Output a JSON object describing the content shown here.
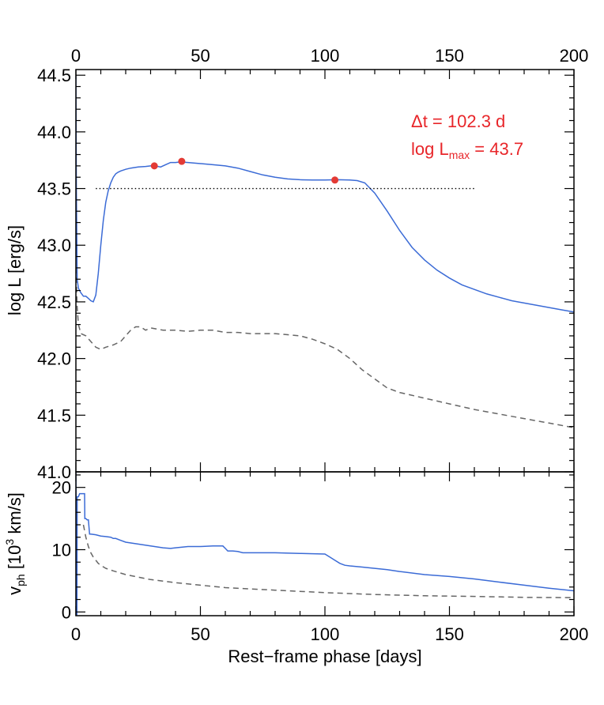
{
  "chart_data": [
    {
      "type": "line",
      "panel": "luminosity",
      "ylabel": "log L [erg/s]",
      "xlim": [
        0,
        200
      ],
      "ylim": [
        41.0,
        44.55
      ],
      "x_ticks": [
        0,
        50,
        100,
        150,
        200
      ],
      "y_ticks": [
        "41.0",
        "41.5",
        "42.0",
        "42.5",
        "43.0",
        "43.5",
        "44.0",
        "44.5"
      ],
      "grid": false,
      "series": [
        {
          "style": "solid",
          "color": "#3b6bd6",
          "x": [
            0,
            0.2,
            0.5,
            1,
            2,
            3,
            4,
            5,
            6,
            7,
            8,
            9,
            10,
            11,
            12,
            13,
            14,
            15,
            16,
            17,
            18,
            20,
            22,
            25,
            28,
            30,
            32,
            34,
            36,
            38,
            40,
            42,
            45,
            50,
            55,
            60,
            65,
            70,
            75,
            80,
            85,
            90,
            95,
            100,
            105,
            110,
            113,
            116,
            120,
            125,
            130,
            135,
            140,
            145,
            150,
            155,
            160,
            165,
            170,
            175,
            180,
            185,
            190,
            195,
            200
          ],
          "y": [
            44.5,
            43.5,
            42.7,
            42.62,
            42.58,
            42.55,
            42.55,
            42.53,
            42.51,
            42.5,
            42.56,
            42.75,
            43.0,
            43.22,
            43.38,
            43.48,
            43.55,
            43.6,
            43.63,
            43.645,
            43.655,
            43.67,
            43.68,
            43.69,
            43.695,
            43.7,
            43.7,
            43.69,
            43.71,
            43.73,
            43.73,
            43.735,
            43.73,
            43.72,
            43.71,
            43.7,
            43.68,
            43.65,
            43.62,
            43.6,
            43.585,
            43.578,
            43.575,
            43.575,
            43.578,
            43.575,
            43.57,
            43.55,
            43.46,
            43.3,
            43.13,
            42.98,
            42.87,
            42.78,
            42.71,
            42.65,
            42.61,
            42.57,
            42.54,
            42.51,
            42.49,
            42.47,
            42.45,
            42.43,
            42.41
          ]
        },
        {
          "style": "dashed",
          "color": "#666666",
          "x": [
            0,
            0.5,
            1,
            2,
            4,
            6,
            8,
            10,
            12,
            15,
            18,
            20,
            22,
            24,
            26,
            28,
            30,
            35,
            40,
            45,
            50,
            55,
            60,
            65,
            70,
            80,
            90,
            95,
            100,
            105,
            110,
            115,
            120,
            125,
            130,
            140,
            150,
            160,
            170,
            180,
            190,
            200
          ],
          "y": [
            42.8,
            42.45,
            42.3,
            42.22,
            42.2,
            42.15,
            42.1,
            42.08,
            42.1,
            42.12,
            42.15,
            42.2,
            42.25,
            42.28,
            42.28,
            42.25,
            42.27,
            42.25,
            42.25,
            42.24,
            42.25,
            42.25,
            42.23,
            42.23,
            42.22,
            42.22,
            42.2,
            42.17,
            42.13,
            42.08,
            42.0,
            41.9,
            41.82,
            41.74,
            41.7,
            41.65,
            41.6,
            41.55,
            41.51,
            41.47,
            41.43,
            41.39
          ]
        }
      ],
      "threshold_line": {
        "y": 43.5,
        "x": [
          8,
          160
        ],
        "style": "dotted"
      },
      "markers": {
        "color": "#e33b35",
        "x": [
          31.5,
          42.5,
          104
        ],
        "y": [
          43.7,
          43.74,
          43.575
        ]
      },
      "annotations": {
        "dt": "Δt = 102.3 d",
        "lmax_prefix": "log L",
        "lmax_sub": "max",
        "lmax_value": " = 43.7"
      }
    },
    {
      "type": "line",
      "panel": "velocity",
      "xlabel": "Rest−frame phase [days]",
      "ylabel_main": "v",
      "ylabel_sub": "ph",
      "ylabel_rest": " [10",
      "ylabel_sup": "3",
      "ylabel_end": " km/s]",
      "xlim": [
        0,
        200
      ],
      "ylim": [
        -0.6,
        22.5
      ],
      "x_ticks": [
        0,
        50,
        100,
        150,
        200
      ],
      "y_ticks": [
        0,
        10,
        20
      ],
      "grid": false,
      "series": [
        {
          "style": "solid",
          "color": "#3b6bd6",
          "x": [
            0,
            0.4,
            0.5,
            1,
            1.5,
            2,
            3,
            3.5,
            3.6,
            4,
            4.5,
            5,
            5.5,
            6,
            8,
            10,
            12,
            14,
            15,
            16,
            18,
            20,
            25,
            30,
            35,
            38,
            40,
            45,
            50,
            55,
            59,
            60,
            61,
            62,
            63,
            65,
            67,
            70,
            75,
            80,
            90,
            100,
            102,
            104,
            106,
            108,
            110,
            115,
            120,
            125,
            130,
            140,
            150,
            160,
            170,
            180,
            190,
            200
          ],
          "y": [
            22.5,
            -0.5,
            18.5,
            18.5,
            19.0,
            19.0,
            19.0,
            19.0,
            15.0,
            15.0,
            14.8,
            14.8,
            12.5,
            12.5,
            12.4,
            12.2,
            12.1,
            12.0,
            11.8,
            11.8,
            11.5,
            11.2,
            10.9,
            10.6,
            10.3,
            10.2,
            10.3,
            10.5,
            10.5,
            10.6,
            10.6,
            10.2,
            9.8,
            9.8,
            9.8,
            9.7,
            9.5,
            9.5,
            9.5,
            9.5,
            9.4,
            9.3,
            8.8,
            8.3,
            7.8,
            7.5,
            7.4,
            7.2,
            7.0,
            6.8,
            6.5,
            6.0,
            5.7,
            5.3,
            4.8,
            4.3,
            3.8,
            3.4
          ]
        },
        {
          "style": "dashed",
          "color": "#666666",
          "x": [
            3,
            4,
            5,
            6,
            7,
            8,
            9,
            10,
            12,
            15,
            20,
            25,
            30,
            40,
            50,
            60,
            70,
            80,
            100,
            120,
            140,
            160,
            180,
            200
          ],
          "y": [
            14.0,
            12.0,
            10.5,
            9.5,
            8.8,
            8.3,
            7.8,
            7.5,
            7.0,
            6.6,
            6.0,
            5.6,
            5.2,
            4.7,
            4.3,
            3.9,
            3.7,
            3.5,
            3.1,
            2.8,
            2.6,
            2.5,
            2.35,
            2.3
          ]
        }
      ]
    }
  ]
}
